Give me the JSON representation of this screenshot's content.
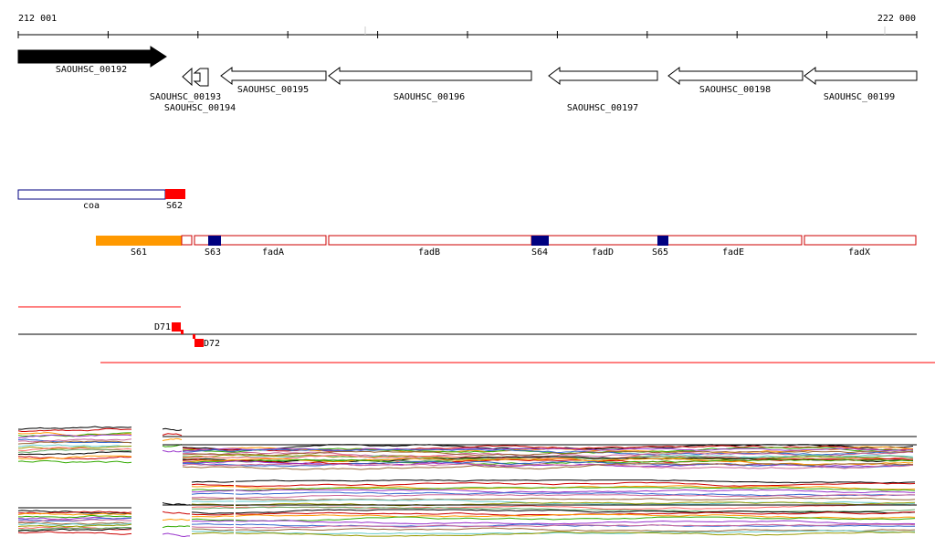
{
  "coordinates": {
    "start": "212 001",
    "end": "222 000"
  },
  "genes": [
    {
      "id": "gene-00192",
      "label": "SAOUHSC_00192",
      "strand": "+",
      "filled": true
    },
    {
      "id": "gene-00193",
      "label": "SAOUHSC_00193",
      "strand": "-",
      "filled": false
    },
    {
      "id": "gene-00194",
      "label": "SAOUHSC_00194",
      "strand": "-",
      "filled": false
    },
    {
      "id": "gene-00195",
      "label": "SAOUHSC_00195",
      "strand": "-",
      "filled": false
    },
    {
      "id": "gene-00196",
      "label": "SAOUHSC_00196",
      "strand": "-",
      "filled": false
    },
    {
      "id": "gene-00197",
      "label": "SAOUHSC_00197",
      "strand": "-",
      "filled": false
    },
    {
      "id": "gene-00198",
      "label": "SAOUHSC_00198",
      "strand": "-",
      "filled": false
    },
    {
      "id": "gene-00199",
      "label": "SAOUHSC_00199",
      "strand": "-",
      "filled": false
    }
  ],
  "segments_track1": [
    {
      "label": "coa",
      "border": "#000080"
    },
    {
      "label": "S62",
      "fill": "#ff0000"
    }
  ],
  "segments_track2": [
    {
      "label": "S61",
      "fill": "#ff9900"
    },
    {
      "label": "S63",
      "fill": "#000080"
    },
    {
      "label": "fadA",
      "border": "#cc0000"
    },
    {
      "label": "fadB",
      "border": "#cc0000"
    },
    {
      "label": "S64",
      "fill": "#000080"
    },
    {
      "label": "fadD",
      "border": "#cc0000"
    },
    {
      "label": "S65",
      "fill": "#000080"
    },
    {
      "label": "fadE",
      "border": "#cc0000"
    },
    {
      "label": "fadX",
      "border": "#cc0000"
    }
  ],
  "markers": [
    {
      "label": "D71",
      "color": "#ff0000"
    },
    {
      "label": "D72",
      "color": "#ff0000"
    }
  ],
  "colors": {
    "gene_fill": "#000000",
    "gene_outline": "#000000",
    "feature_red": "#ff0000",
    "feature_orange": "#ff9900",
    "feature_navy": "#000080",
    "expression_palette": [
      "#000000",
      "#cc0000",
      "#ff9900",
      "#33aa00",
      "#9933cc",
      "#3366cc",
      "#cc6699",
      "#996633",
      "#66cccc",
      "#999900",
      "#ff6666",
      "#66aa66"
    ]
  }
}
